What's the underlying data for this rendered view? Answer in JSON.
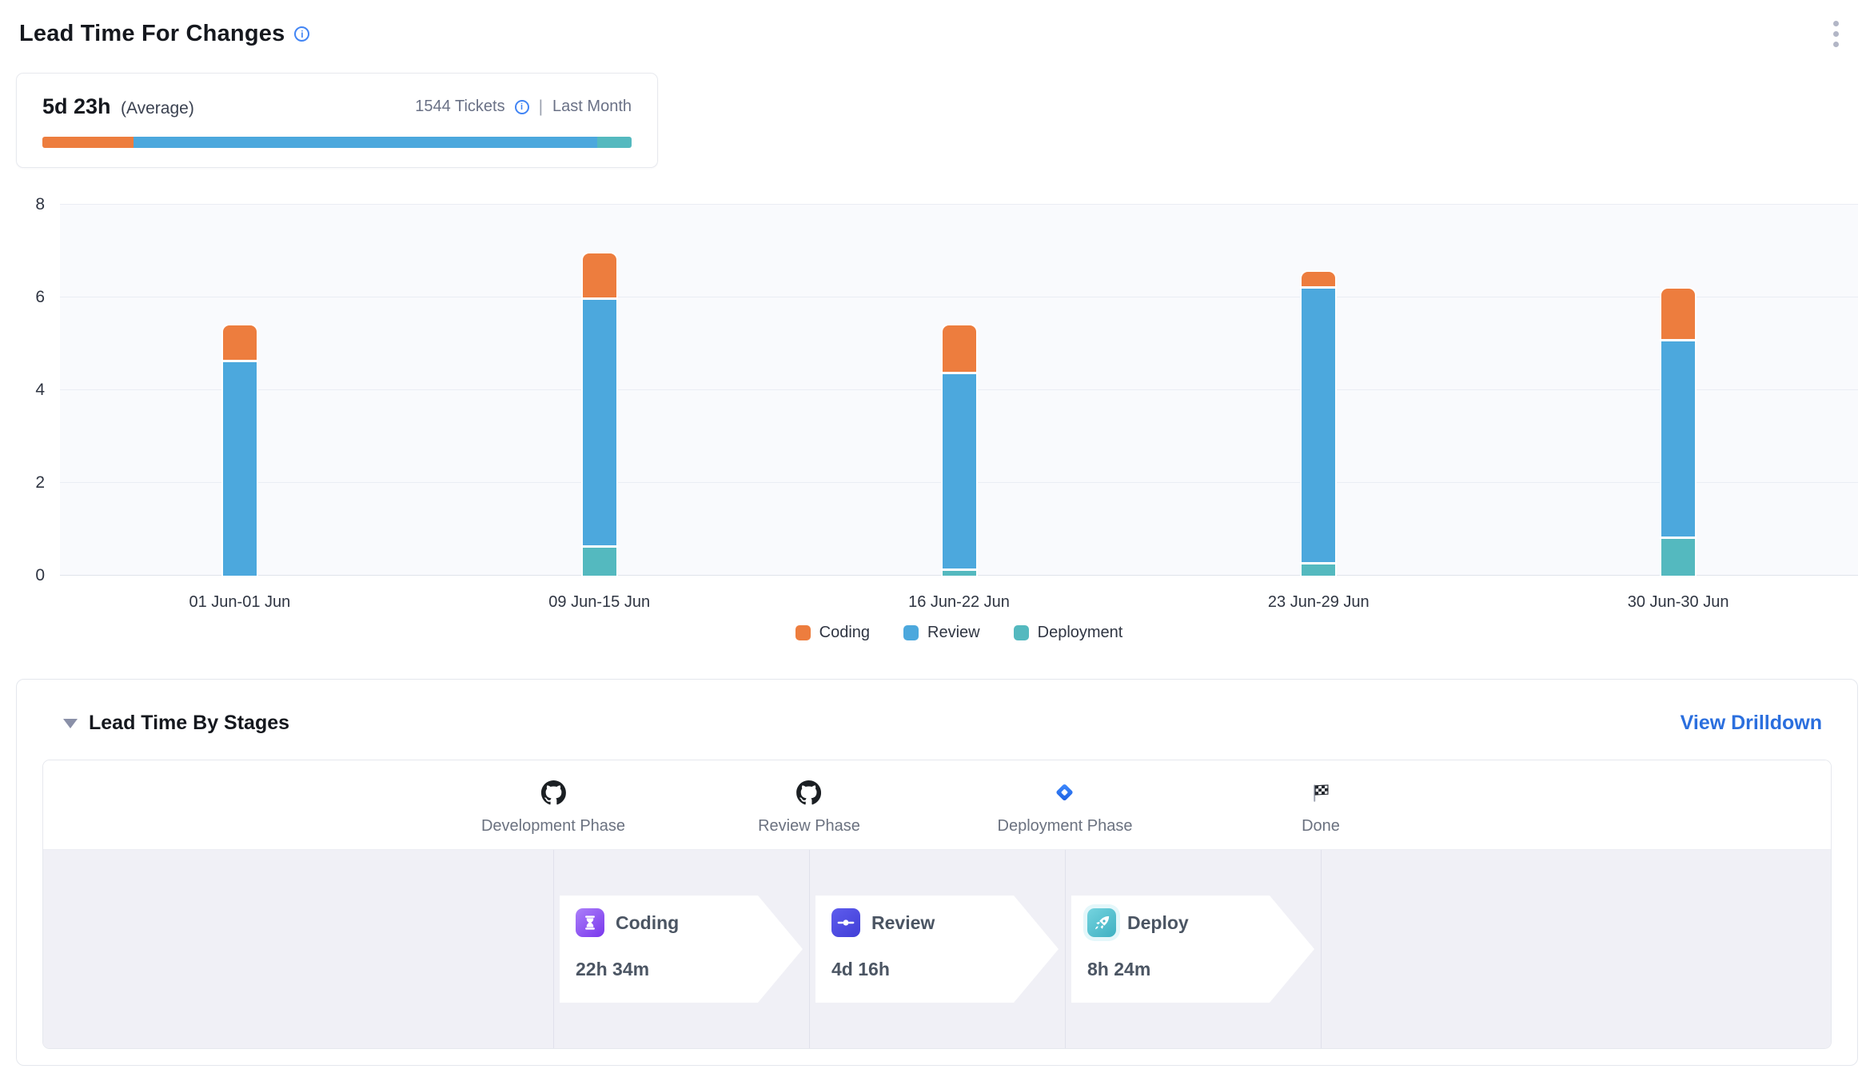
{
  "page": {
    "title": "Lead Time For Changes"
  },
  "summary": {
    "value": "5d 23h",
    "value_suffix": "(Average)",
    "tickets": "1544 Tickets",
    "separator": "|",
    "period": "Last Month",
    "bar_segments": [
      {
        "name": "Coding",
        "color": "#ED7D3E",
        "percent": 15.5
      },
      {
        "name": "Review",
        "color": "#4CA8DD",
        "percent": 78.7
      },
      {
        "name": "Deployment",
        "color": "#54B9BF",
        "percent": 5.8
      }
    ]
  },
  "chart_data": {
    "type": "bar",
    "stacked": true,
    "title": "",
    "xlabel": "",
    "ylabel": "",
    "ylim": [
      0,
      8
    ],
    "yticks": [
      0,
      2,
      4,
      6,
      8
    ],
    "grid": true,
    "legend_position": "bottom",
    "categories": [
      "01 Jun-01 Jun",
      "09 Jun-15 Jun",
      "16 Jun-22 Jun",
      "23 Jun-29 Jun",
      "30 Jun-30 Jun"
    ],
    "series": [
      {
        "name": "Coding",
        "color": "#ED7D3E",
        "values": [
          0.8,
          1.0,
          1.05,
          0.35,
          1.15
        ]
      },
      {
        "name": "Review",
        "color": "#4CA8DD",
        "values": [
          4.65,
          5.35,
          4.25,
          5.95,
          4.25
        ]
      },
      {
        "name": "Deployment",
        "color": "#54B9BF",
        "values": [
          0.0,
          0.65,
          0.15,
          0.3,
          0.85
        ]
      }
    ]
  },
  "stages_panel": {
    "title": "Lead Time By Stages",
    "drilldown_label": "View Drilldown",
    "phases": [
      {
        "label": "Development Phase",
        "icon": "github-icon"
      },
      {
        "label": "Review Phase",
        "icon": "github-icon"
      },
      {
        "label": "Deployment Phase",
        "icon": "jira-icon"
      },
      {
        "label": "Done",
        "icon": "finish-flag-icon"
      }
    ],
    "stages": [
      {
        "title": "Coding",
        "value": "22h 34m",
        "icon": "hourglass-icon",
        "icon_bg": "bg-hourglass"
      },
      {
        "title": "Review",
        "value": "4d 16h",
        "icon": "commit-icon",
        "icon_bg": "bg-commit"
      },
      {
        "title": "Deploy",
        "value": "8h 24m",
        "icon": "rocket-icon",
        "icon_bg": "bg-rocket"
      }
    ]
  }
}
